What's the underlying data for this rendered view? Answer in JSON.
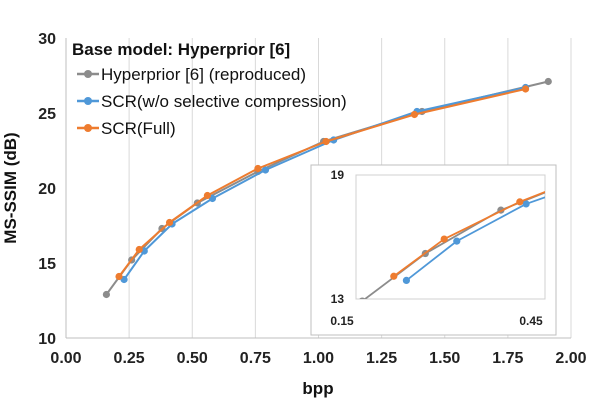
{
  "chart_data": {
    "type": "line",
    "xlabel": "bpp",
    "ylabel": "MS-SSIM (dB)",
    "xlim": [
      0.0,
      2.0
    ],
    "ylim": [
      10,
      30
    ],
    "xticks": [
      "0.00",
      "0.25",
      "0.50",
      "0.75",
      "1.00",
      "1.25",
      "1.50",
      "1.75",
      "2.00"
    ],
    "yticks": [
      "10",
      "15",
      "20",
      "25",
      "30"
    ],
    "grid": "vertical",
    "legend_title": "Base model: Hyperprior [6]",
    "legend_position": "top-left",
    "series": [
      {
        "name": "Hyperprior [6] (reproduced)",
        "color": "#8c8c8c",
        "x": [
          0.16,
          0.26,
          0.38,
          0.52,
          0.76,
          1.02,
          1.41,
          1.91
        ],
        "y": [
          12.9,
          15.2,
          17.3,
          19.0,
          21.1,
          23.1,
          25.1,
          27.1
        ]
      },
      {
        "name": "SCR(w/o selective compression)",
        "color": "#4f98d8",
        "x": [
          0.23,
          0.31,
          0.42,
          0.58,
          0.79,
          1.06,
          1.39,
          1.82
        ],
        "y": [
          13.9,
          15.8,
          17.6,
          19.3,
          21.2,
          23.2,
          25.1,
          26.7
        ]
      },
      {
        "name": "SCR(Full)",
        "color": "#ee7c2f",
        "x": [
          0.21,
          0.29,
          0.41,
          0.56,
          0.76,
          1.03,
          1.38,
          1.82
        ],
        "y": [
          14.1,
          15.9,
          17.7,
          19.5,
          21.3,
          23.1,
          24.9,
          26.6
        ]
      }
    ],
    "inset": {
      "xlim": [
        0.15,
        0.45
      ],
      "ylim": [
        13,
        19
      ],
      "xticks": [
        "0.15",
        "0.45"
      ],
      "yticks": [
        "19",
        "13"
      ]
    }
  }
}
